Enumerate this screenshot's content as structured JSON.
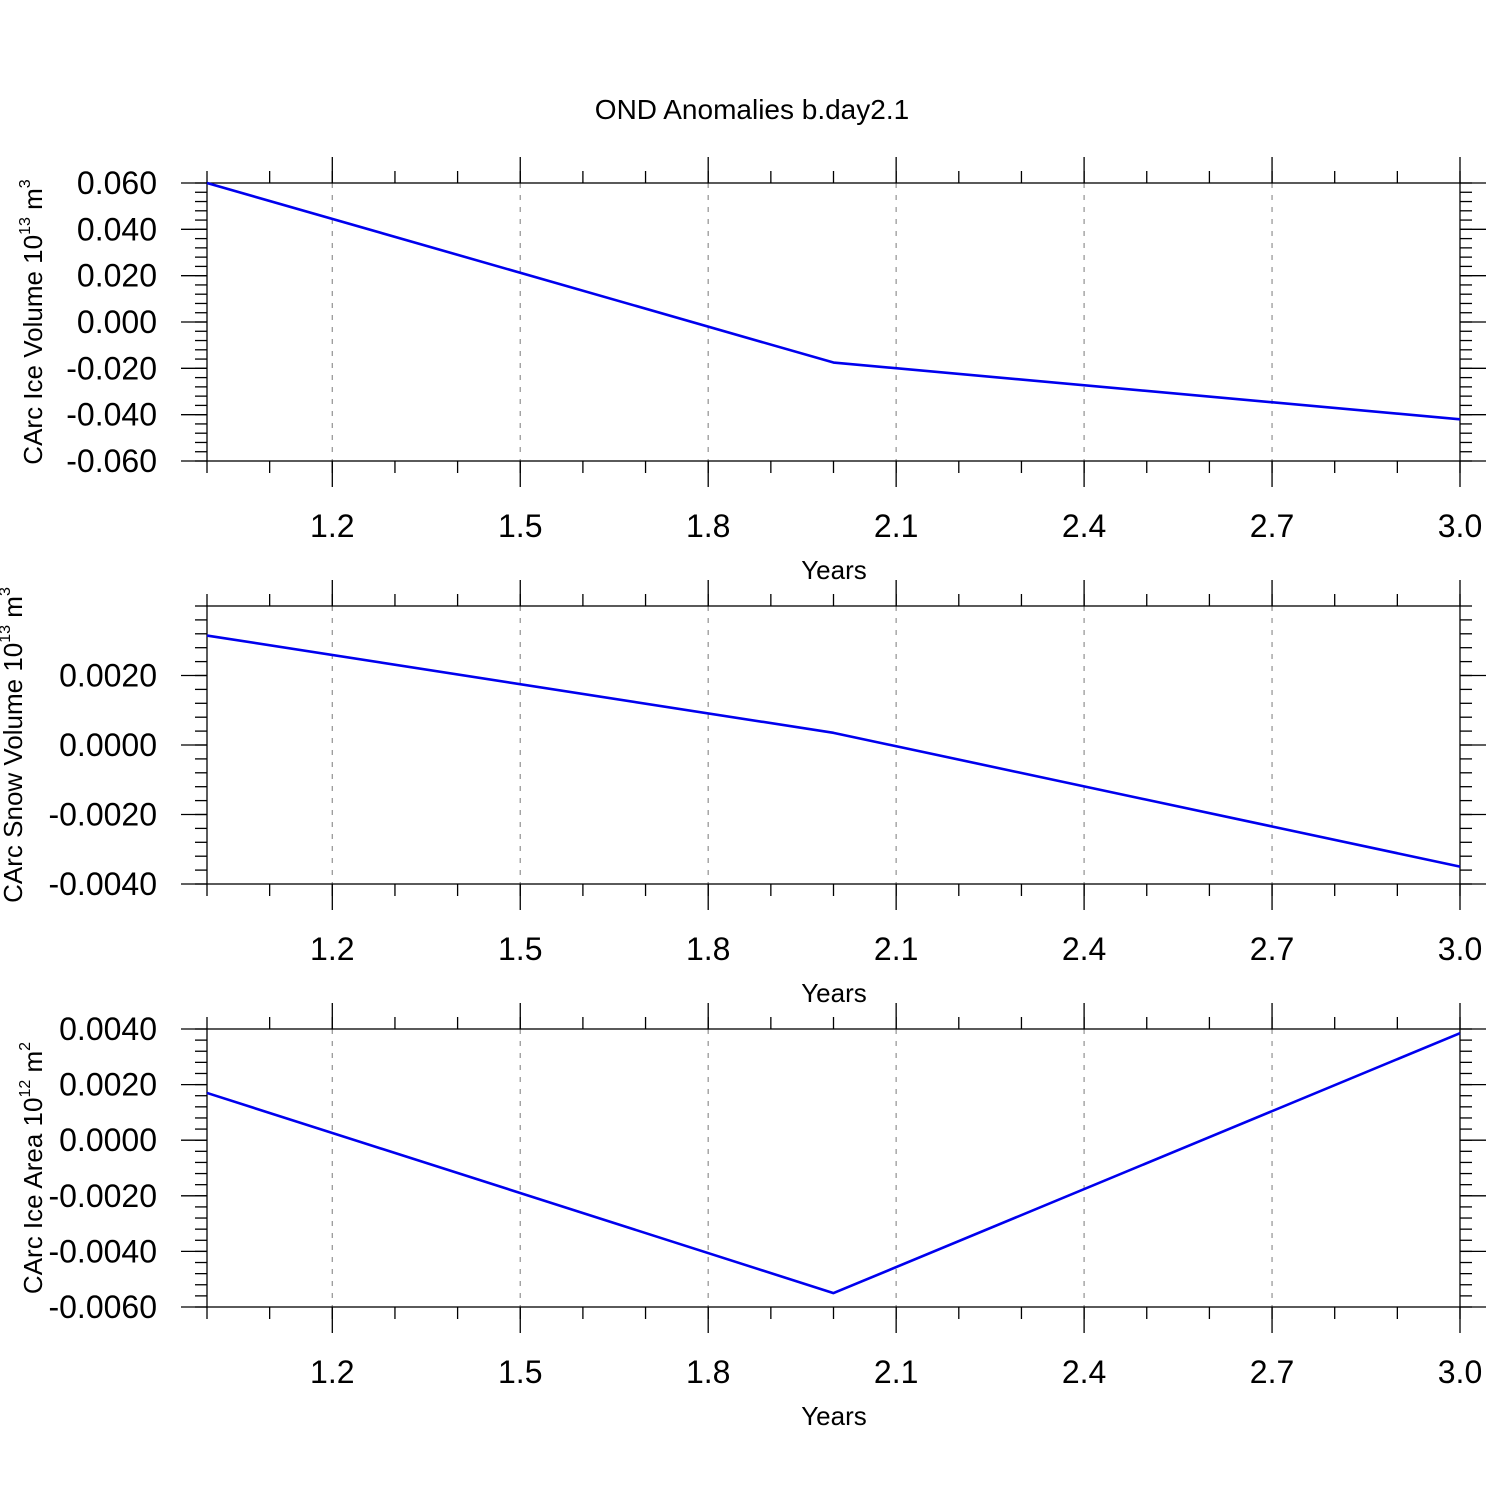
{
  "title": "OND Anomalies b.day2.1",
  "chart_data": [
    {
      "type": "line",
      "xlabel": "Years",
      "ylabel": {
        "base": "CArc Ice Volume 10",
        "exp": "13",
        "unit": " m",
        "unit_exp": "3"
      },
      "x": [
        1,
        2,
        3
      ],
      "series": [
        {
          "values": [
            0.06,
            -0.0175,
            -0.042
          ],
          "color": "#0000ee"
        }
      ],
      "xlim": [
        1,
        3
      ],
      "ylim": [
        -0.06,
        0.06
      ],
      "xticks": [
        1.2,
        1.5,
        1.8,
        2.1,
        2.4,
        2.7,
        3.0
      ],
      "xtick_labels": [
        "1.2",
        "1.5",
        "1.8",
        "2.1",
        "2.4",
        "2.7",
        "3.0"
      ],
      "yticks": [
        0.06,
        0.04,
        0.02,
        0.0,
        -0.02,
        -0.04,
        -0.06
      ],
      "ytick_labels": [
        "0.060",
        "0.040",
        "0.020",
        "0.000",
        "-0.020",
        "-0.040",
        "-0.060"
      ],
      "grid": "vertical-dashed"
    },
    {
      "type": "line",
      "xlabel": "Years",
      "ylabel": {
        "base": "CArc Snow Volume 10",
        "exp": "13",
        "unit": " m",
        "unit_exp": "3"
      },
      "x": [
        1,
        2,
        3
      ],
      "series": [
        {
          "values": [
            0.00315,
            0.00035,
            -0.0035
          ],
          "color": "#0000ee"
        }
      ],
      "xlim": [
        1,
        3
      ],
      "ylim": [
        -0.004,
        0.004
      ],
      "xticks": [
        1.2,
        1.5,
        1.8,
        2.1,
        2.4,
        2.7,
        3.0
      ],
      "xtick_labels": [
        "1.2",
        "1.5",
        "1.8",
        "2.1",
        "2.4",
        "2.7",
        "3.0"
      ],
      "yticks": [
        0.002,
        0.0,
        -0.002,
        -0.004
      ],
      "ytick_labels": [
        "0.0020",
        "0.0000",
        "-0.0020",
        "-0.0040"
      ],
      "grid": "vertical-dashed"
    },
    {
      "type": "line",
      "xlabel": "Years",
      "ylabel": {
        "base": "CArc Ice Area 10",
        "exp": "12",
        "unit": " m",
        "unit_exp": "2"
      },
      "x": [
        1,
        2,
        3
      ],
      "series": [
        {
          "values": [
            0.0017,
            -0.0055,
            0.00385
          ],
          "color": "#0000ee"
        }
      ],
      "xlim": [
        1,
        3
      ],
      "ylim": [
        -0.006,
        0.004
      ],
      "xticks": [
        1.2,
        1.5,
        1.8,
        2.1,
        2.4,
        2.7,
        3.0
      ],
      "xtick_labels": [
        "1.2",
        "1.5",
        "1.8",
        "2.1",
        "2.4",
        "2.7",
        "3.0"
      ],
      "yticks": [
        0.004,
        0.002,
        0.0,
        -0.002,
        -0.004,
        -0.006
      ],
      "ytick_labels": [
        "0.0040",
        "0.0020",
        "0.0000",
        "-0.0020",
        "-0.0040",
        "-0.0060"
      ],
      "grid": "vertical-dashed"
    }
  ]
}
